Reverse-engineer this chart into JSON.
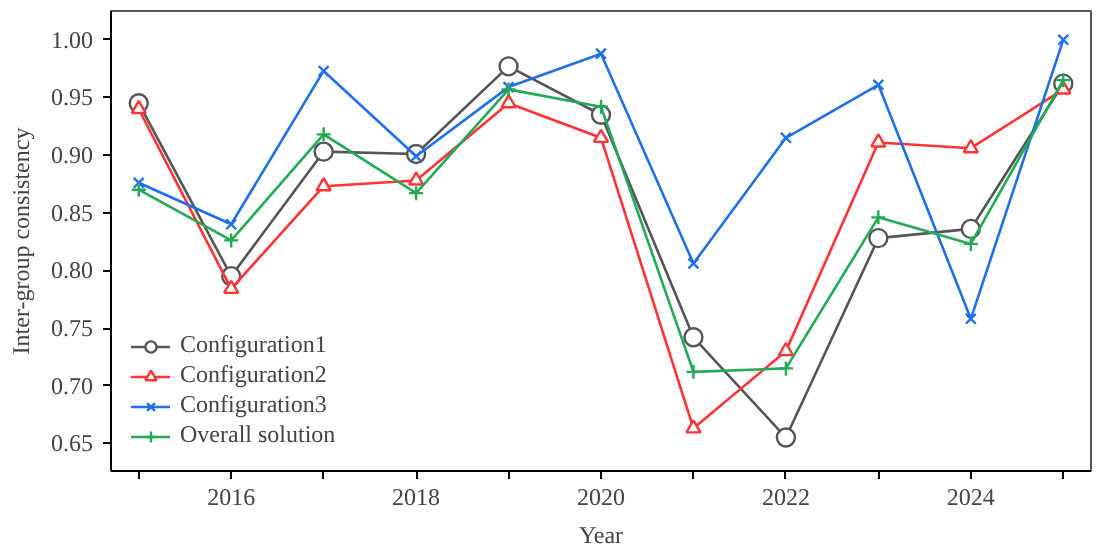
{
  "chart_data": {
    "type": "line",
    "xlabel": "Year",
    "ylabel": "Inter-group consistency",
    "x": [
      2015,
      2016,
      2017,
      2018,
      2019,
      2020,
      2021,
      2022,
      2023,
      2024,
      2025
    ],
    "series": [
      {
        "name": "Configuration1",
        "color": "#555555",
        "marker": "circle",
        "values": [
          0.945,
          0.795,
          0.903,
          0.901,
          0.977,
          0.935,
          0.742,
          0.655,
          0.828,
          0.836,
          0.962
        ]
      },
      {
        "name": "Configuration2",
        "color": "#ff3333",
        "marker": "triangle",
        "values": [
          0.94,
          0.784,
          0.873,
          0.878,
          0.945,
          0.915,
          0.663,
          0.73,
          0.911,
          0.906,
          0.957
        ]
      },
      {
        "name": "Configuration3",
        "color": "#1f6fe8",
        "marker": "cross",
        "values": [
          0.876,
          0.84,
          0.973,
          0.899,
          0.959,
          0.988,
          0.806,
          0.915,
          0.961,
          0.758,
          1.0
        ]
      },
      {
        "name": "Overall solution",
        "color": "#22aa55",
        "marker": "plus",
        "values": [
          0.87,
          0.826,
          0.918,
          0.867,
          0.957,
          0.942,
          0.712,
          0.715,
          0.846,
          0.823,
          0.965
        ]
      }
    ],
    "xlim": [
      2014.7,
      2025.3
    ],
    "ylim": [
      0.626,
      1.025
    ],
    "xticks": [
      {
        "value": 2015,
        "label": null
      },
      2016,
      {
        "value": 2017,
        "label": null
      },
      2018,
      {
        "value": 2019,
        "label": null
      },
      2020,
      {
        "value": 2021,
        "label": null
      },
      2022,
      {
        "value": 2023,
        "label": null
      },
      2024,
      {
        "value": 2025,
        "label": null
      }
    ],
    "yticks": [
      {
        "value": 0.65,
        "label": "0.65"
      },
      {
        "value": 0.7,
        "label": "0.70"
      },
      {
        "value": 0.75,
        "label": "0.75"
      },
      {
        "value": 0.8,
        "label": "0.80"
      },
      {
        "value": 0.85,
        "label": "0.85"
      },
      {
        "value": 0.9,
        "label": "0.90"
      },
      {
        "value": 0.95,
        "label": "0.95"
      },
      {
        "value": 1.0,
        "label": "1.00"
      }
    ],
    "grid": false,
    "legend": "bottom left",
    "line_style": "solid"
  }
}
